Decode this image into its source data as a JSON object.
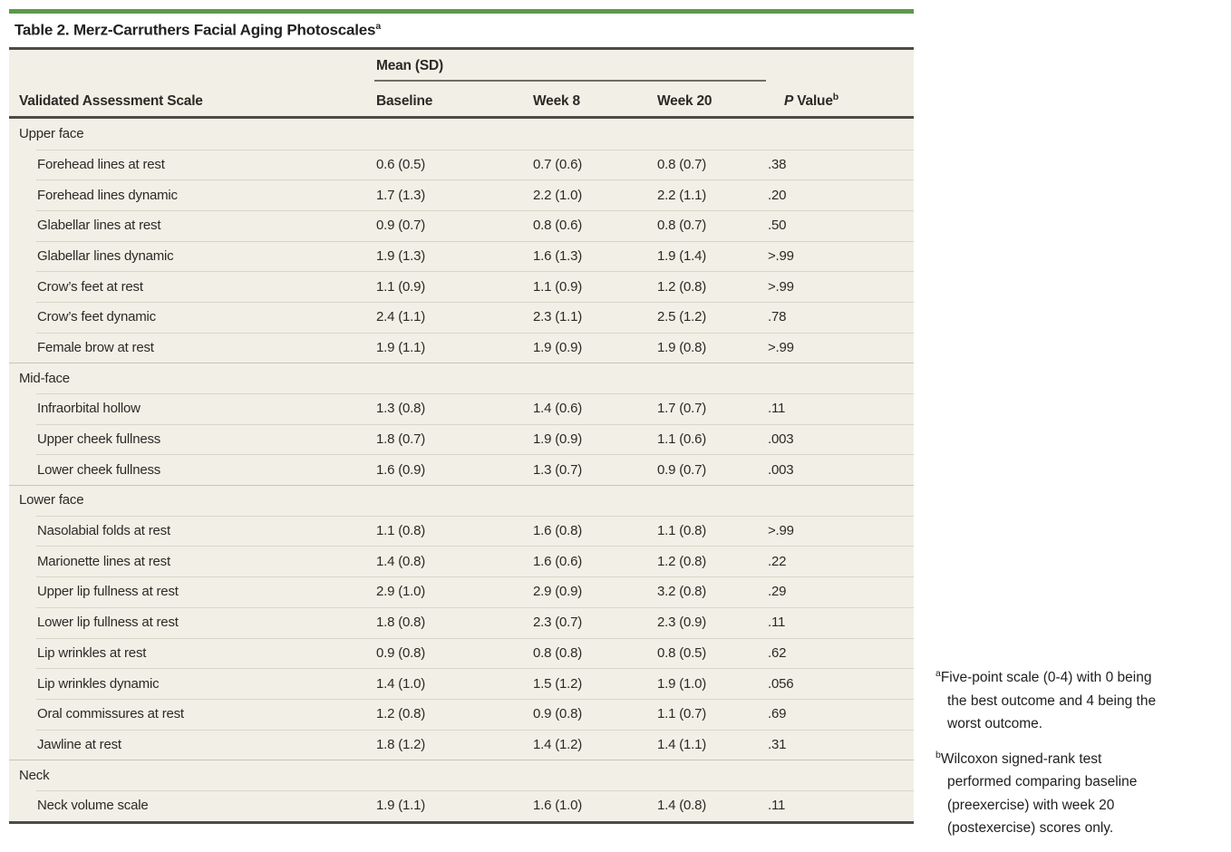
{
  "table": {
    "title": "Table 2. Merz-Carruthers Facial Aging Photoscales",
    "title_marker": "a",
    "spanner_label": "Mean (SD)",
    "col1_header": "Validated Assessment Scale",
    "col_headers": [
      "Baseline",
      "Week 8",
      "Week 20"
    ],
    "p_header": {
      "italic": "P",
      "rest": " Value",
      "marker": "b"
    },
    "sections": [
      {
        "label": "Upper face",
        "rows": [
          {
            "label": "Forehead lines at rest",
            "baseline": "0.6 (0.5)",
            "week8": "0.7 (0.6)",
            "week20": "0.8 (0.7)",
            "p": ".38"
          },
          {
            "label": "Forehead lines dynamic",
            "baseline": "1.7 (1.3)",
            "week8": "2.2 (1.0)",
            "week20": "2.2 (1.1)",
            "p": ".20"
          },
          {
            "label": "Glabellar lines at rest",
            "baseline": "0.9 (0.7)",
            "week8": "0.8 (0.6)",
            "week20": "0.8 (0.7)",
            "p": ".50"
          },
          {
            "label": "Glabellar lines dynamic",
            "baseline": "1.9 (1.3)",
            "week8": "1.6 (1.3)",
            "week20": "1.9 (1.4)",
            "p": ">.99"
          },
          {
            "label": "Crow’s feet at rest",
            "baseline": "1.1 (0.9)",
            "week8": "1.1 (0.9)",
            "week20": "1.2 (0.8)",
            "p": ">.99"
          },
          {
            "label": "Crow’s feet dynamic",
            "baseline": "2.4 (1.1)",
            "week8": "2.3 (1.1)",
            "week20": "2.5 (1.2)",
            "p": ".78"
          },
          {
            "label": "Female brow at rest",
            "baseline": "1.9 (1.1)",
            "week8": "1.9 (0.9)",
            "week20": "1.9 (0.8)",
            "p": ">.99"
          }
        ]
      },
      {
        "label": "Mid-face",
        "rows": [
          {
            "label": "Infraorbital hollow",
            "baseline": "1.3 (0.8)",
            "week8": "1.4 (0.6)",
            "week20": "1.7 (0.7)",
            "p": ".11"
          },
          {
            "label": "Upper cheek fullness",
            "baseline": "1.8 (0.7)",
            "week8": "1.9 (0.9)",
            "week20": "1.1 (0.6)",
            "p": ".003"
          },
          {
            "label": "Lower cheek fullness",
            "baseline": "1.6 (0.9)",
            "week8": "1.3 (0.7)",
            "week20": "0.9 (0.7)",
            "p": ".003"
          }
        ]
      },
      {
        "label": "Lower face",
        "rows": [
          {
            "label": "Nasolabial folds at rest",
            "baseline": "1.1 (0.8)",
            "week8": "1.6 (0.8)",
            "week20": "1.1 (0.8)",
            "p": ">.99"
          },
          {
            "label": "Marionette lines at rest",
            "baseline": "1.4 (0.8)",
            "week8": "1.6 (0.6)",
            "week20": "1.2 (0.8)",
            "p": ".22"
          },
          {
            "label": "Upper lip fullness at rest",
            "baseline": "2.9 (1.0)",
            "week8": "2.9 (0.9)",
            "week20": "3.2 (0.8)",
            "p": ".29"
          },
          {
            "label": "Lower lip fullness at rest",
            "baseline": "1.8 (0.8)",
            "week8": "2.3 (0.7)",
            "week20": "2.3 (0.9)",
            "p": ".11"
          },
          {
            "label": "Lip wrinkles at rest",
            "baseline": "0.9 (0.8)",
            "week8": "0.8 (0.8)",
            "week20": "0.8 (0.5)",
            "p": ".62"
          },
          {
            "label": "Lip wrinkles dynamic",
            "baseline": "1.4 (1.0)",
            "week8": "1.5 (1.2)",
            "week20": "1.9 (1.0)",
            "p": ".056"
          },
          {
            "label": "Oral commissures at rest",
            "baseline": "1.2 (0.8)",
            "week8": "0.9 (0.8)",
            "week20": "1.1 (0.7)",
            "p": ".69"
          },
          {
            "label": "Jawline at rest",
            "baseline": "1.8 (1.2)",
            "week8": "1.4 (1.2)",
            "week20": "1.4 (1.1)",
            "p": ".31"
          }
        ]
      },
      {
        "label": "Neck",
        "rows": [
          {
            "label": "Neck volume scale",
            "baseline": "1.9 (1.1)",
            "week8": "1.6 (1.0)",
            "week20": "1.4 (0.8)",
            "p": ".11"
          }
        ]
      }
    ]
  },
  "footnotes": [
    {
      "marker": "a",
      "text": "Five-point scale (0-4) with 0 being the best outcome and 4 being the worst outcome.",
      "lines": "Five-point scale (0-4) with 0 being\nthe best outcome and 4 being the\nworst outcome."
    },
    {
      "marker": "b",
      "text": "Wilcoxon signed-rank test performed comparing baseline (preexercise) with week 20 (postexercise) scores only.",
      "lines": "Wilcoxon signed-rank test\nperformed comparing baseline\n(preexercise) with week 20\n(postexercise) scores only."
    }
  ],
  "colors": {
    "accent_green": "#5c9a4d",
    "table_bg": "#f2f0e6",
    "rule_dark": "#4c4b47"
  },
  "chart_data": {
    "type": "table",
    "title": "Table 2. Merz-Carruthers Facial Aging Photoscales",
    "columns": [
      "Validated Assessment Scale",
      "Baseline Mean (SD)",
      "Week 8 Mean (SD)",
      "Week 20 Mean (SD)",
      "P Value"
    ],
    "rows": [
      [
        "Upper face",
        "",
        "",
        "",
        ""
      ],
      [
        "Forehead lines at rest",
        "0.6 (0.5)",
        "0.7 (0.6)",
        "0.8 (0.7)",
        ".38"
      ],
      [
        "Forehead lines dynamic",
        "1.7 (1.3)",
        "2.2 (1.0)",
        "2.2 (1.1)",
        ".20"
      ],
      [
        "Glabellar lines at rest",
        "0.9 (0.7)",
        "0.8 (0.6)",
        "0.8 (0.7)",
        ".50"
      ],
      [
        "Glabellar lines dynamic",
        "1.9 (1.3)",
        "1.6 (1.3)",
        "1.9 (1.4)",
        ">.99"
      ],
      [
        "Crow’s feet at rest",
        "1.1 (0.9)",
        "1.1 (0.9)",
        "1.2 (0.8)",
        ">.99"
      ],
      [
        "Crow’s feet dynamic",
        "2.4 (1.1)",
        "2.3 (1.1)",
        "2.5 (1.2)",
        ".78"
      ],
      [
        "Female brow at rest",
        "1.9 (1.1)",
        "1.9 (0.9)",
        "1.9 (0.8)",
        ">.99"
      ],
      [
        "Mid-face",
        "",
        "",
        "",
        ""
      ],
      [
        "Infraorbital hollow",
        "1.3 (0.8)",
        "1.4 (0.6)",
        "1.7 (0.7)",
        ".11"
      ],
      [
        "Upper cheek fullness",
        "1.8 (0.7)",
        "1.9 (0.9)",
        "1.1 (0.6)",
        ".003"
      ],
      [
        "Lower cheek fullness",
        "1.6 (0.9)",
        "1.3 (0.7)",
        "0.9 (0.7)",
        ".003"
      ],
      [
        "Lower face",
        "",
        "",
        "",
        ""
      ],
      [
        "Nasolabial folds at rest",
        "1.1 (0.8)",
        "1.6 (0.8)",
        "1.1 (0.8)",
        ">.99"
      ],
      [
        "Marionette lines at rest",
        "1.4 (0.8)",
        "1.6 (0.6)",
        "1.2 (0.8)",
        ".22"
      ],
      [
        "Upper lip fullness at rest",
        "2.9 (1.0)",
        "2.9 (0.9)",
        "3.2 (0.8)",
        ".29"
      ],
      [
        "Lower lip fullness at rest",
        "1.8 (0.8)",
        "2.3 (0.7)",
        "2.3 (0.9)",
        ".11"
      ],
      [
        "Lip wrinkles at rest",
        "0.9 (0.8)",
        "0.8 (0.8)",
        "0.8 (0.5)",
        ".62"
      ],
      [
        "Lip wrinkles dynamic",
        "1.4 (1.0)",
        "1.5 (1.2)",
        "1.9 (1.0)",
        ".056"
      ],
      [
        "Oral commissures at rest",
        "1.2 (0.8)",
        "0.9 (0.8)",
        "1.1 (0.7)",
        ".69"
      ],
      [
        "Jawline at rest",
        "1.8 (1.2)",
        "1.4 (1.2)",
        "1.4 (1.1)",
        ".31"
      ],
      [
        "Neck",
        "",
        "",
        "",
        ""
      ],
      [
        "Neck volume scale",
        "1.9 (1.1)",
        "1.6 (1.0)",
        "1.4 (0.8)",
        ".11"
      ]
    ]
  }
}
